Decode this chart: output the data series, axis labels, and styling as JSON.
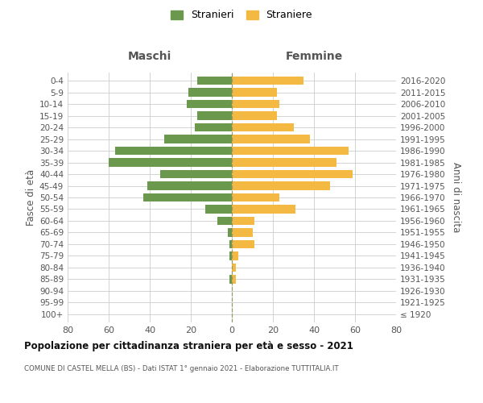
{
  "age_groups": [
    "100+",
    "95-99",
    "90-94",
    "85-89",
    "80-84",
    "75-79",
    "70-74",
    "65-69",
    "60-64",
    "55-59",
    "50-54",
    "45-49",
    "40-44",
    "35-39",
    "30-34",
    "25-29",
    "20-24",
    "15-19",
    "10-14",
    "5-9",
    "0-4"
  ],
  "birth_years": [
    "≤ 1920",
    "1921-1925",
    "1926-1930",
    "1931-1935",
    "1936-1940",
    "1941-1945",
    "1946-1950",
    "1951-1955",
    "1956-1960",
    "1961-1965",
    "1966-1970",
    "1971-1975",
    "1976-1980",
    "1981-1985",
    "1986-1990",
    "1991-1995",
    "1996-2000",
    "2001-2005",
    "2006-2010",
    "2011-2015",
    "2016-2020"
  ],
  "maschi": [
    0,
    0,
    0,
    1,
    0,
    1,
    1,
    2,
    7,
    13,
    43,
    41,
    35,
    60,
    57,
    33,
    18,
    17,
    22,
    21,
    17
  ],
  "femmine": [
    0,
    0,
    0,
    2,
    2,
    3,
    11,
    10,
    11,
    31,
    23,
    48,
    59,
    51,
    57,
    38,
    30,
    22,
    23,
    22,
    35
  ],
  "color_maschi": "#6a994e",
  "color_femmine": "#f4b942",
  "background_color": "#ffffff",
  "grid_color": "#cccccc",
  "title": "Popolazione per cittadinanza straniera per età e sesso - 2021",
  "subtitle": "COMUNE DI CASTEL MELLA (BS) - Dati ISTAT 1° gennaio 2021 - Elaborazione TUTTITALIA.IT",
  "xlabel_left": "Maschi",
  "xlabel_right": "Femmine",
  "ylabel_left": "Fasce di età",
  "ylabel_right": "Anni di nascita",
  "legend_maschi": "Stranieri",
  "legend_femmine": "Straniere",
  "xlim": 80
}
